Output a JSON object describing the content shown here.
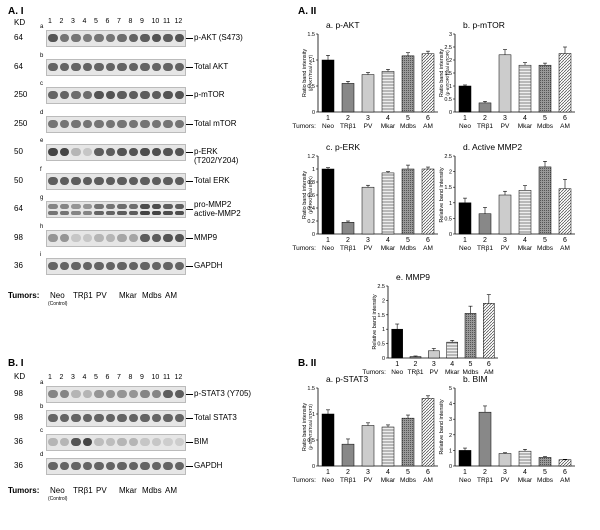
{
  "panel_A1": {
    "label": "A. I",
    "kd_label": "KD",
    "lanes": [
      "1",
      "2",
      "3",
      "4",
      "5",
      "6",
      "7",
      "8",
      "9",
      "10",
      "11",
      "12"
    ],
    "blots": [
      {
        "letter": "a",
        "kd": "64",
        "name": "p-AKT (S473)"
      },
      {
        "letter": "b",
        "kd": "64",
        "name": "Total AKT"
      },
      {
        "letter": "c",
        "kd": "250",
        "name": "p-mTOR"
      },
      {
        "letter": "d",
        "kd": "250",
        "name": "Total mTOR"
      },
      {
        "letter": "e",
        "kd": "50",
        "name": "p-ERK",
        "name2": "(T202/Y204)"
      },
      {
        "letter": "f",
        "kd": "50",
        "name": "Total ERK"
      },
      {
        "letter": "g",
        "kd": "64",
        "name": "pro-MMP2",
        "name2": "active-MMP2"
      },
      {
        "letter": "h",
        "kd": "98",
        "name": "MMP9"
      },
      {
        "letter": "i",
        "kd": "36",
        "name": "GAPDH"
      }
    ],
    "tumors_label": "Tumors:",
    "tumors": [
      "Neo",
      "TRβ1",
      "PV",
      "Mkar",
      "Mdbs",
      "AM"
    ],
    "control": "(Control)"
  },
  "panel_B1": {
    "label": "B. I",
    "kd_label": "KD",
    "lanes": [
      "1",
      "2",
      "3",
      "4",
      "5",
      "6",
      "7",
      "8",
      "9",
      "10",
      "11",
      "12"
    ],
    "blots": [
      {
        "letter": "a",
        "kd": "98",
        "name": "p-STAT3 (Y705)"
      },
      {
        "letter": "b",
        "kd": "98",
        "name": "Total STAT3"
      },
      {
        "letter": "c",
        "kd": "36",
        "name": "BIM"
      },
      {
        "letter": "d",
        "kd": "36",
        "name": "GAPDH"
      }
    ],
    "tumors_label": "Tumors:",
    "tumors": [
      "Neo",
      "TRβ1",
      "PV",
      "Mkar",
      "Mdbs",
      "AM"
    ],
    "control": "(Control)"
  },
  "panel_A2_label": "A. II",
  "panel_B2_label": "B. II",
  "chart_data": [
    {
      "id": "a-pakt",
      "type": "bar",
      "title": "a. p-AKT",
      "ylabel": "Ratio band intensity",
      "ylabel2": "(p-AKT/Total AKT)",
      "ylim": [
        0,
        1.5
      ],
      "yticks": [
        "0",
        "0.5",
        "1",
        "1.5"
      ],
      "categories": [
        "Neo",
        "TRβ1",
        "PV",
        "Mkar",
        "Mdbs",
        "AM"
      ],
      "values": [
        1.0,
        0.55,
        0.72,
        0.78,
        1.08,
        1.12
      ],
      "errors": [
        0.09,
        0.04,
        0.04,
        0.04,
        0.06,
        0.05
      ]
    },
    {
      "id": "b-pmtor",
      "type": "bar",
      "title": "b. p-mTOR",
      "ylabel": "Ratio band intensity",
      "ylabel2": "(p-mTOR/Total mTOR)",
      "ylim": [
        0,
        3
      ],
      "yticks": [
        "0",
        "0.5",
        "1",
        "1.5",
        "2",
        "2.5",
        "3"
      ],
      "categories": [
        "Neo",
        "TRβ1",
        "PV",
        "Mkar",
        "Mdbs",
        "AM"
      ],
      "values": [
        1.0,
        0.35,
        2.2,
        1.8,
        1.8,
        2.25
      ],
      "errors": [
        0.04,
        0.06,
        0.2,
        0.1,
        0.08,
        0.25
      ]
    },
    {
      "id": "c-perk",
      "type": "bar",
      "title": "c. p-ERK",
      "ylabel": "Ratio band intensity",
      "ylabel2": "(p-ERK/Total ERK)",
      "ylim": [
        0,
        1.2
      ],
      "yticks": [
        "0",
        "0.2",
        "0.4",
        "0.6",
        "0.8",
        "1",
        "1.2"
      ],
      "categories": [
        "Neo",
        "TRβ1",
        "PV",
        "Mkar",
        "Mdbs",
        "AM"
      ],
      "values": [
        1.0,
        0.18,
        0.72,
        0.94,
        1.0,
        1.0
      ],
      "errors": [
        0.02,
        0.02,
        0.03,
        0.02,
        0.06,
        0.03
      ]
    },
    {
      "id": "d-mmp2",
      "type": "bar",
      "title": "d. Active MMP2",
      "ylabel": "Relative band intensity",
      "ylim": [
        0,
        2.5
      ],
      "yticks": [
        "0",
        "0.5",
        "1",
        "1.5",
        "2",
        "2.5"
      ],
      "categories": [
        "Neo",
        "TRβ1",
        "PV",
        "Mkar",
        "Mdbs",
        "AM"
      ],
      "values": [
        1.0,
        0.65,
        1.25,
        1.4,
        2.15,
        1.45
      ],
      "errors": [
        0.15,
        0.2,
        0.12,
        0.15,
        0.18,
        0.3
      ]
    },
    {
      "id": "e-mmp9",
      "type": "bar",
      "title": "e. MMP9",
      "ylabel": "Relative band intensity",
      "ylim": [
        0,
        2.5
      ],
      "yticks": [
        "0",
        "0.5",
        "1",
        "1.5",
        "2",
        "2.5"
      ],
      "categories": [
        "Neo",
        "TRβ1",
        "PV",
        "Mkar",
        "Mdbs",
        "AM"
      ],
      "values": [
        1.0,
        0.05,
        0.25,
        0.55,
        1.55,
        1.9
      ],
      "errors": [
        0.18,
        0.02,
        0.08,
        0.06,
        0.25,
        0.3
      ]
    },
    {
      "id": "f-pstat3",
      "type": "bar",
      "title": "a. p-STAT3",
      "ylabel": "Ratio band intensity",
      "ylabel2": "(p-STAT3/Total STAT3)",
      "ylim": [
        0,
        1.5
      ],
      "yticks": [
        "0",
        "0.5",
        "1",
        "1.5"
      ],
      "categories": [
        "Neo",
        "TRβ1",
        "PV",
        "Mkar",
        "Mdbs",
        "AM"
      ],
      "values": [
        1.0,
        0.42,
        0.78,
        0.75,
        0.92,
        1.3
      ],
      "errors": [
        0.08,
        0.1,
        0.05,
        0.04,
        0.06,
        0.05
      ]
    },
    {
      "id": "g-bim",
      "type": "bar",
      "title": "b. BIM",
      "ylabel": "Relative band intensity",
      "ylim": [
        0,
        5
      ],
      "yticks": [
        "0",
        "1",
        "2",
        "3",
        "4",
        "5"
      ],
      "categories": [
        "Neo",
        "TRβ1",
        "PV",
        "Mkar",
        "Mdbs",
        "AM"
      ],
      "values": [
        1.0,
        3.45,
        0.8,
        0.95,
        0.55,
        0.4
      ],
      "errors": [
        0.15,
        0.4,
        0.05,
        0.12,
        0.05,
        0.03
      ]
    }
  ]
}
